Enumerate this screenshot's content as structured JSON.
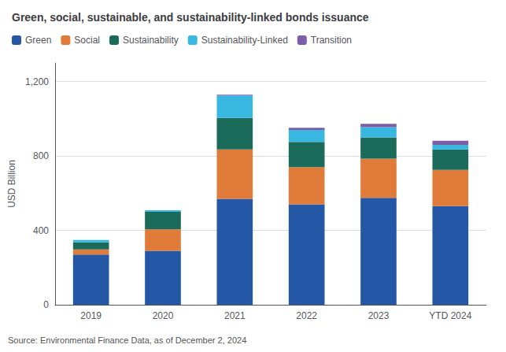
{
  "chart_data": {
    "type": "bar",
    "title": "Green, social, sustainable, and sustainability-linked bonds issuance",
    "ylabel": "USD Billion",
    "source": "Source: Environmental Finance Data, as of December 2, 2024",
    "categories": [
      "2019",
      "2020",
      "2021",
      "2022",
      "2023",
      "YTD 2024"
    ],
    "series": [
      {
        "name": "Green",
        "color": "#2458a6",
        "values": [
          270,
          290,
          570,
          540,
          575,
          530
        ]
      },
      {
        "name": "Social",
        "color": "#e07b39",
        "values": [
          28,
          115,
          265,
          200,
          210,
          195
        ]
      },
      {
        "name": "Sustainability",
        "color": "#1a6b5a",
        "values": [
          38,
          95,
          170,
          135,
          115,
          110
        ]
      },
      {
        "name": "Sustainability-Linked",
        "color": "#38b8e0",
        "values": [
          12,
          8,
          120,
          65,
          55,
          25
        ]
      },
      {
        "name": "Transition",
        "color": "#7b5ea7",
        "values": [
          0,
          0,
          5,
          12,
          18,
          22
        ]
      }
    ],
    "ylim": [
      0,
      1300
    ],
    "yticks": [
      0,
      400,
      800,
      {
        "value": 1200,
        "label": "1,200"
      }
    ],
    "grid": true,
    "stacked": true,
    "legend": "upper left"
  }
}
